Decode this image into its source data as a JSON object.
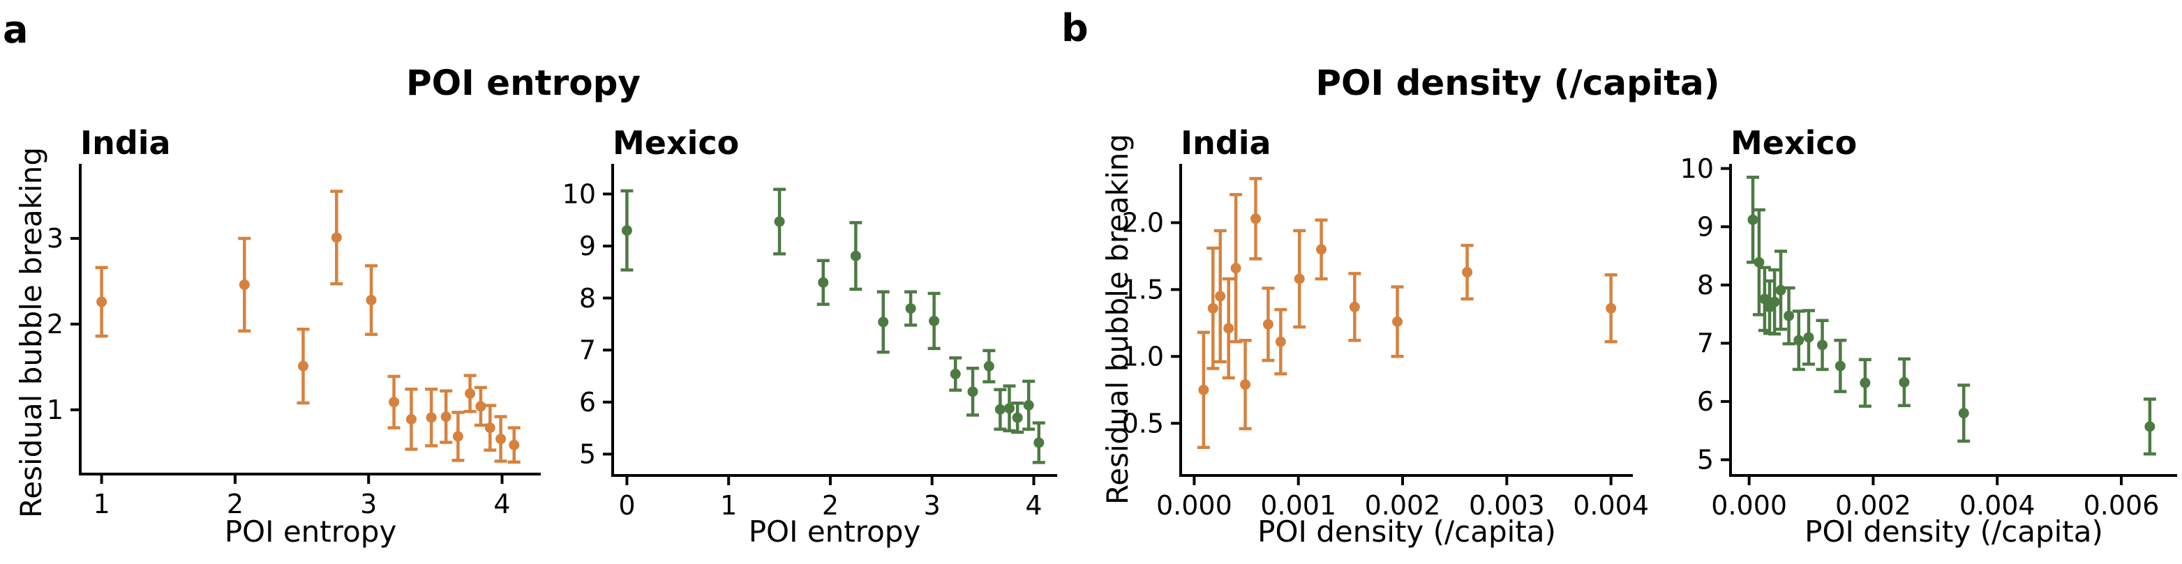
{
  "figure": {
    "panel_a": {
      "label": "a",
      "title": "POI entropy"
    },
    "panel_b": {
      "label": "b",
      "title": "POI density (/capita)"
    }
  },
  "colors": {
    "india": "#D6823E",
    "mexico": "#4D7A43",
    "axis": "#000000"
  },
  "chart_data": [
    {
      "type": "scatter",
      "id": "a-india",
      "panel": "a",
      "title": "India",
      "xlabel": "POI entropy",
      "ylabel": "Residual bubble breaking",
      "color": "#D6823E",
      "error_bars": true,
      "grid": false,
      "xlim": [
        0.84,
        4.29
      ],
      "ylim": [
        0.25,
        3.87
      ],
      "xticks": {
        "values": [
          1,
          2,
          3,
          4
        ],
        "labels": [
          "1",
          "2",
          "3",
          "4"
        ]
      },
      "yticks": {
        "values": [
          1,
          2,
          3
        ],
        "labels": [
          "1",
          "2",
          "3"
        ]
      },
      "x": [
        1.0,
        2.07,
        2.51,
        2.76,
        3.02,
        3.19,
        3.32,
        3.47,
        3.58,
        3.67,
        3.76,
        3.84,
        3.91,
        3.99,
        4.09
      ],
      "y": [
        2.26,
        2.46,
        1.51,
        3.01,
        2.28,
        1.09,
        0.89,
        0.91,
        0.92,
        0.69,
        1.19,
        1.04,
        0.79,
        0.66,
        0.59
      ],
      "yerr": [
        0.4,
        0.54,
        0.43,
        0.54,
        0.4,
        0.3,
        0.35,
        0.33,
        0.3,
        0.28,
        0.21,
        0.22,
        0.26,
        0.26,
        0.2
      ]
    },
    {
      "type": "scatter",
      "id": "a-mexico",
      "panel": "a",
      "title": "Mexico",
      "xlabel": "POI entropy",
      "ylabel": "",
      "color": "#4D7A43",
      "error_bars": true,
      "grid": false,
      "xlim": [
        -0.14,
        4.23
      ],
      "ylim": [
        4.59,
        10.58
      ],
      "xticks": {
        "values": [
          0,
          1,
          2,
          3,
          4
        ],
        "labels": [
          "0",
          "1",
          "2",
          "3",
          "4"
        ]
      },
      "yticks": {
        "values": [
          5,
          6,
          7,
          8,
          9,
          10
        ],
        "labels": [
          "5",
          "6",
          "7",
          "8",
          "9",
          "10"
        ]
      },
      "x": [
        0.0,
        1.5,
        1.93,
        2.25,
        2.52,
        2.79,
        3.02,
        3.23,
        3.4,
        3.56,
        3.67,
        3.76,
        3.84,
        3.95,
        4.05
      ],
      "y": [
        9.3,
        9.47,
        8.3,
        8.81,
        7.54,
        7.8,
        7.56,
        6.54,
        6.2,
        6.69,
        5.86,
        5.88,
        5.7,
        5.94,
        5.22
      ],
      "yerr": [
        0.76,
        0.62,
        0.42,
        0.64,
        0.58,
        0.32,
        0.53,
        0.31,
        0.45,
        0.3,
        0.38,
        0.43,
        0.28,
        0.46,
        0.38
      ]
    },
    {
      "type": "scatter",
      "id": "b-india",
      "panel": "b",
      "title": "India",
      "xlabel": "POI density (/capita)",
      "ylabel": "Residual bubble breaking",
      "color": "#D6823E",
      "error_bars": true,
      "grid": false,
      "xlim": [
        -0.00013,
        0.00421
      ],
      "ylim": [
        0.11,
        2.44
      ],
      "xticks": {
        "values": [
          0,
          0.001,
          0.002,
          0.003,
          0.004
        ],
        "labels": [
          "0.000",
          "0.001",
          "0.002",
          "0.003",
          "0.004"
        ]
      },
      "yticks": {
        "values": [
          0.5,
          1.0,
          1.5,
          2.0
        ],
        "labels": [
          "0.5",
          "1.0",
          "1.5",
          "2.0"
        ]
      },
      "x": [
        9e-05,
        0.00018,
        0.00025,
        0.00033,
        0.0004,
        0.00049,
        0.00059,
        0.00071,
        0.00083,
        0.00101,
        0.00122,
        0.00154,
        0.00195,
        0.00262,
        0.004
      ],
      "y": [
        0.75,
        1.36,
        1.45,
        1.21,
        1.66,
        0.79,
        2.03,
        1.24,
        1.11,
        1.58,
        1.8,
        1.37,
        1.26,
        1.63,
        1.36
      ],
      "yerr": [
        0.43,
        0.45,
        0.49,
        0.37,
        0.55,
        0.33,
        0.3,
        0.27,
        0.24,
        0.36,
        0.22,
        0.25,
        0.26,
        0.2,
        0.25
      ]
    },
    {
      "type": "scatter",
      "id": "b-mexico",
      "panel": "b",
      "title": "Mexico",
      "xlabel": "POI density (/capita)",
      "ylabel": "",
      "color": "#4D7A43",
      "error_bars": true,
      "grid": false,
      "xlim": [
        -0.0003,
        0.0069
      ],
      "ylim": [
        4.73,
        10.08
      ],
      "xticks": {
        "values": [
          0,
          0.002,
          0.004,
          0.006
        ],
        "labels": [
          "0.000",
          "0.002",
          "0.004",
          "0.006"
        ]
      },
      "yticks": {
        "values": [
          5,
          6,
          7,
          8,
          9,
          10
        ],
        "labels": [
          "5",
          "6",
          "7",
          "8",
          "9",
          "10"
        ]
      },
      "x": [
        6e-05,
        0.00016,
        0.00025,
        0.00033,
        0.00041,
        0.00051,
        0.00064,
        0.0008,
        0.00096,
        0.00118,
        0.00147,
        0.00187,
        0.0025,
        0.00346,
        0.00646
      ],
      "y": [
        9.12,
        8.39,
        7.76,
        7.62,
        7.71,
        7.91,
        7.47,
        7.05,
        7.1,
        6.97,
        6.61,
        6.32,
        6.33,
        5.8,
        5.57
      ],
      "yerr": [
        0.73,
        0.9,
        0.54,
        0.45,
        0.55,
        0.67,
        0.48,
        0.5,
        0.46,
        0.42,
        0.44,
        0.4,
        0.4,
        0.48,
        0.47
      ]
    }
  ]
}
